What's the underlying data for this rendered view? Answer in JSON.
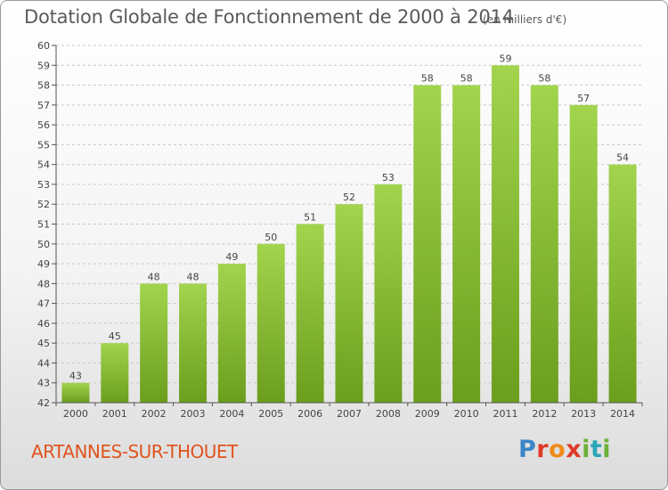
{
  "header": {
    "title": "Dotation Globale de Fonctionnement de 2000 à 2014",
    "unit": "(en milliers d'€)"
  },
  "footer": {
    "town": "ARTANNES-SUR-THOUET",
    "logo": [
      "P",
      "r",
      "o",
      "x",
      "i",
      "t",
      "i"
    ]
  },
  "colors": {
    "bar_top": "#a2d44e",
    "bar_bottom": "#6a9e1c",
    "title": "#5a5a5a",
    "town": "#e0541f"
  },
  "chart_data": {
    "type": "bar",
    "title": "Dotation Globale de Fonctionnement de 2000 à 2014",
    "subtitle": "(en milliers d'€)",
    "xlabel": "",
    "ylabel": "",
    "categories": [
      "2000",
      "2001",
      "2002",
      "2003",
      "2004",
      "2005",
      "2006",
      "2007",
      "2008",
      "2009",
      "2010",
      "2011",
      "2012",
      "2013",
      "2014"
    ],
    "values": [
      43,
      45,
      48,
      48,
      49,
      50,
      51,
      52,
      53,
      58,
      58,
      59,
      58,
      57,
      54
    ],
    "ylim": [
      42,
      60
    ],
    "yticks": [
      42,
      43,
      44,
      45,
      46,
      47,
      48,
      49,
      50,
      51,
      52,
      53,
      54,
      55,
      56,
      57,
      58,
      59,
      60
    ],
    "grid": "horizontal-dashed",
    "legend": "none"
  }
}
